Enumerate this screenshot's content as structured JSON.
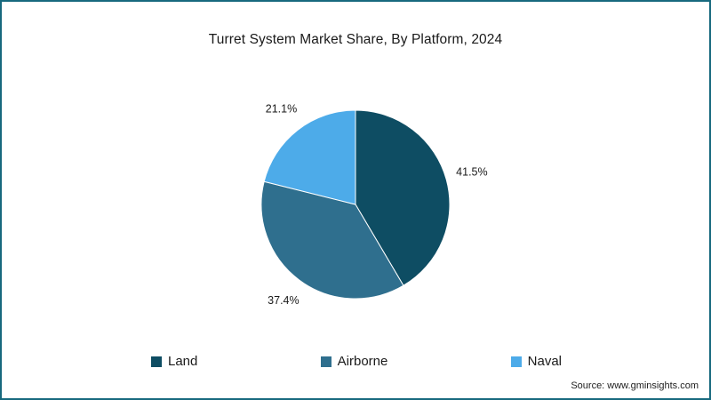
{
  "chart_data": {
    "type": "pie",
    "title": "Turret System Market Share, By Platform, 2024",
    "categories": [
      "Land",
      "Airborne",
      "Naval"
    ],
    "values": [
      41.5,
      37.4,
      21.1
    ],
    "labels": [
      "41.5%",
      "37.4%",
      "21.1%"
    ],
    "colors": [
      "#0e4d63",
      "#2f6f8e",
      "#4dabe9"
    ],
    "start_angle_deg": 0,
    "direction": "clockwise",
    "legend_position": "bottom",
    "slice_border_color": "#ffffff"
  },
  "source": "Source: www.gminsights.com",
  "frame_color": "#17697e"
}
